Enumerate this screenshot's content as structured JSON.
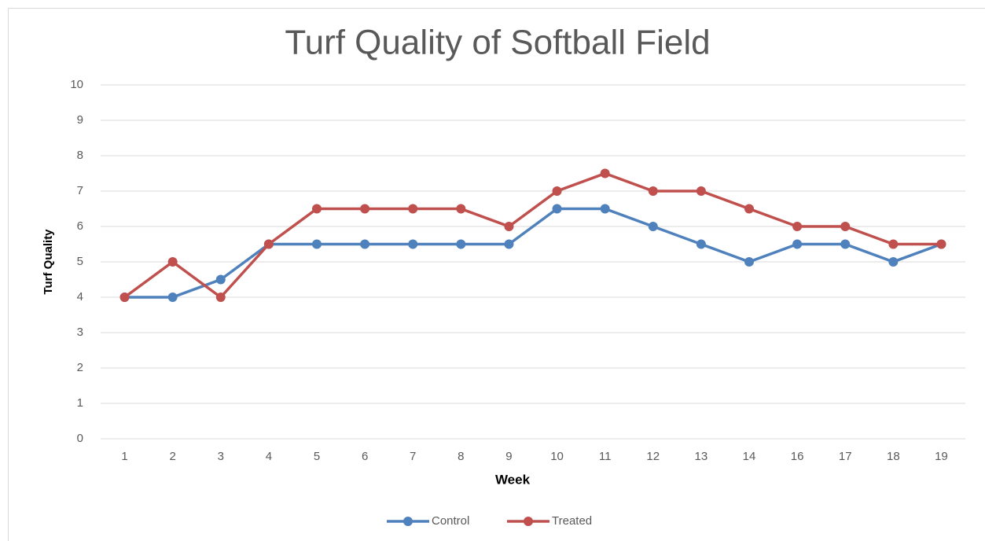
{
  "chart_data": {
    "type": "line",
    "title": "Turf Quality of Softball Field",
    "x_label": "Week",
    "y_label": "Turf Quality",
    "categories": [
      "1",
      "2",
      "3",
      "4",
      "5",
      "6",
      "7",
      "8",
      "9",
      "10",
      "11",
      "12",
      "13",
      "14",
      "16",
      "17",
      "18",
      "19"
    ],
    "series": [
      {
        "name": "Control",
        "color": "#4f81bd",
        "values": [
          4,
          4,
          4.5,
          5.5,
          5.5,
          5.5,
          5.5,
          5.5,
          5.5,
          6.5,
          6.5,
          6,
          5.5,
          5,
          5.5,
          5.5,
          5,
          5.5
        ]
      },
      {
        "name": "Treated",
        "color": "#c0504d",
        "values": [
          4,
          5,
          4,
          5.5,
          6.5,
          6.5,
          6.5,
          6.5,
          6,
          7,
          7.5,
          7,
          7,
          6.5,
          6,
          6,
          5.5,
          5.5
        ]
      }
    ],
    "ylim": [
      0,
      10
    ],
    "yticks": [
      0,
      1,
      2,
      3,
      4,
      5,
      6,
      7,
      8,
      9,
      10
    ],
    "grid": true,
    "legend": "bottom"
  }
}
